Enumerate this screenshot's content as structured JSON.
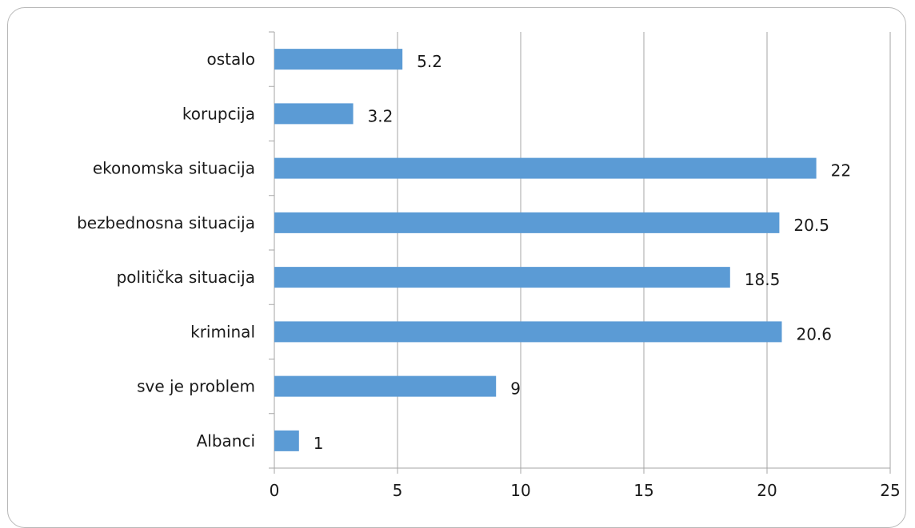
{
  "chart_data": {
    "type": "bar",
    "orientation": "horizontal",
    "categories": [
      "ostalo",
      "korupcija",
      "ekonomska situacija",
      "bezbednosna situacija",
      "politička situacija",
      "kriminal",
      "sve je problem",
      "Albanci"
    ],
    "values": [
      5.2,
      3.2,
      22,
      20.5,
      18.5,
      20.6,
      9,
      1
    ],
    "data_labels": [
      "5.2",
      "3.2",
      "22",
      "20.5",
      "18.5",
      "20.6",
      "9",
      "1"
    ],
    "x_ticks": [
      "0",
      "5",
      "10",
      "15",
      "20",
      "25"
    ],
    "xlim": [
      0,
      25
    ],
    "title": "",
    "xlabel": "",
    "ylabel": "",
    "grid": "vertical",
    "legend": "none",
    "bar_color": "#5b9bd5",
    "grid_color": "#a6a6a6"
  }
}
